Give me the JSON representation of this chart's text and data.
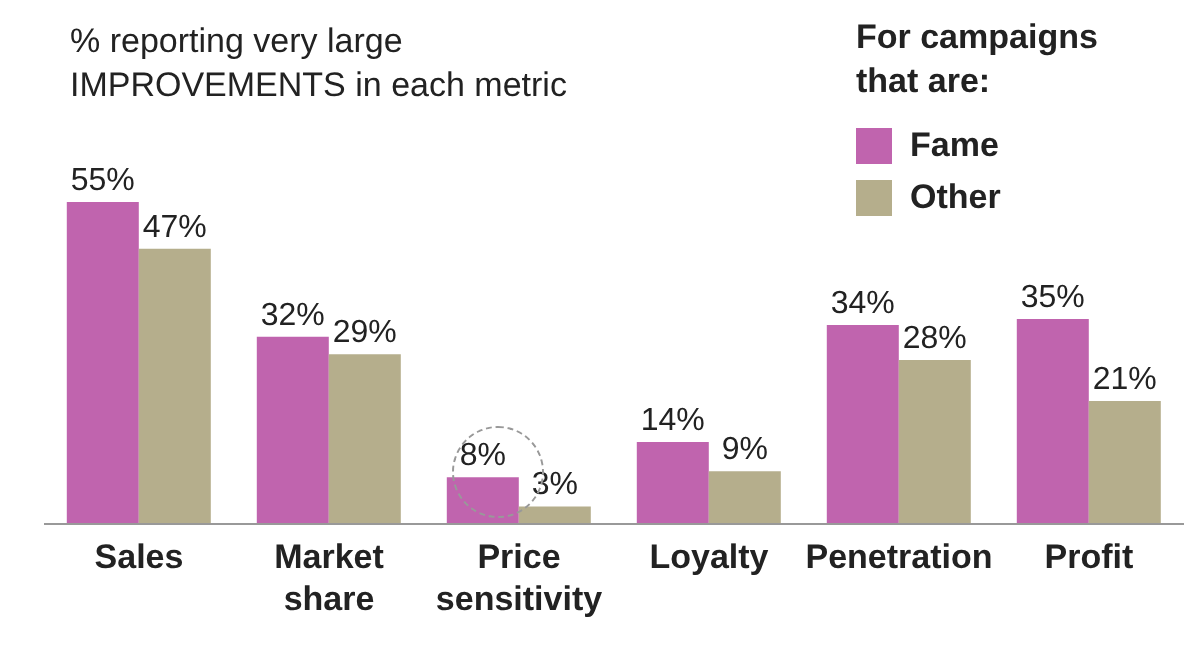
{
  "chart_data": {
    "type": "bar",
    "title": "% reporting very large IMPROVEMENTS in each metric",
    "legend_title": "For campaigns that are:",
    "legend": "top right",
    "categories": [
      "Sales",
      "Market share",
      "Price sensitivity",
      "Loyalty",
      "Penetration",
      "Profit"
    ],
    "series": [
      {
        "name": "Fame",
        "color": "#c064ae",
        "values": [
          55,
          32,
          8,
          14,
          34,
          35
        ],
        "value_labels": [
          "55%",
          "32%",
          "8%",
          "14%",
          "34%",
          "35%"
        ]
      },
      {
        "name": "Other",
        "color": "#b5ae8c",
        "values": [
          47,
          29,
          3,
          9,
          28,
          21
        ],
        "value_labels": [
          "47%",
          "29%",
          "3%",
          "9%",
          "28%",
          "21%"
        ]
      }
    ]
  }
}
